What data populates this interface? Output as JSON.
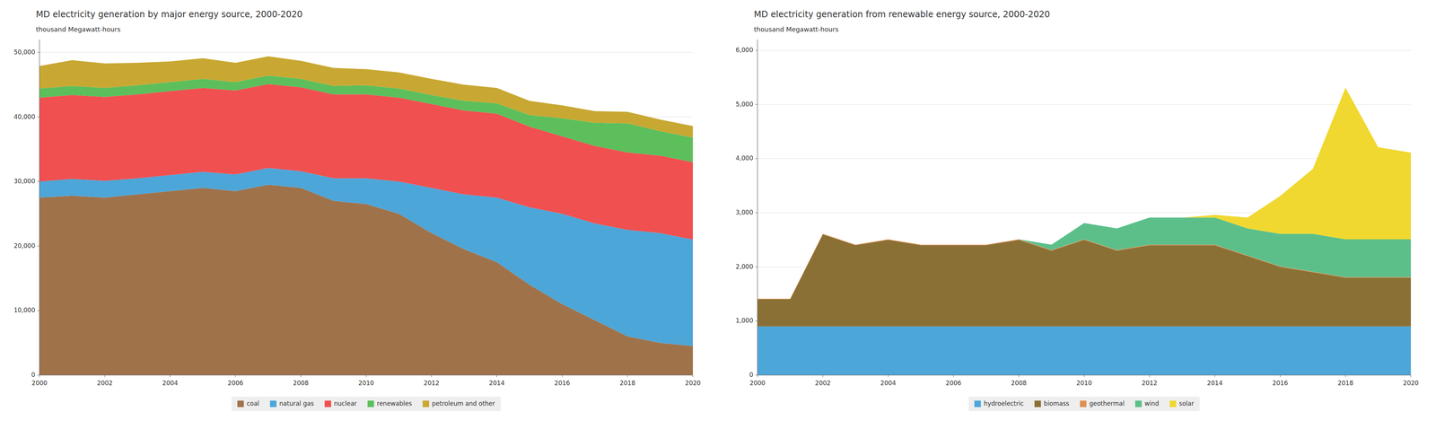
{
  "chart_data": [
    {
      "type": "area",
      "stacked": true,
      "title": "MD electricity generation by major energy source, 2000-2020",
      "ylabel": "thousand Megawatt-hours",
      "x": [
        2000,
        2001,
        2002,
        2003,
        2004,
        2005,
        2006,
        2007,
        2008,
        2009,
        2010,
        2011,
        2012,
        2013,
        2014,
        2015,
        2016,
        2017,
        2018,
        2019,
        2020
      ],
      "xlim": [
        2000,
        2020
      ],
      "xticks": [
        2000,
        2002,
        2004,
        2006,
        2008,
        2010,
        2012,
        2014,
        2016,
        2018,
        2020
      ],
      "ylim": [
        0,
        52000
      ],
      "yticks": [
        0,
        {
          "value": 10000,
          "label": "10,000"
        },
        {
          "value": 20000,
          "label": "20,000"
        },
        {
          "value": 30000,
          "label": "30,000"
        },
        {
          "value": 40000,
          "label": "40,000"
        },
        {
          "value": 50000,
          "label": "50,000"
        }
      ],
      "grid": true,
      "legend": "bottom",
      "series": [
        {
          "name": "coal",
          "color": "#a0724a",
          "values": [
            27500,
            27800,
            27500,
            28000,
            28500,
            29000,
            28500,
            29500,
            29000,
            27000,
            26500,
            25000,
            22000,
            19500,
            17500,
            14000,
            11000,
            8500,
            6000,
            5000,
            4500
          ]
        },
        {
          "name": "natural gas",
          "color": "#4da6d8",
          "values": [
            2500,
            2600,
            2600,
            2500,
            2500,
            2500,
            2600,
            2600,
            2600,
            3500,
            4000,
            5000,
            7000,
            8500,
            10000,
            12000,
            14000,
            15000,
            16500,
            17000,
            16500
          ]
        },
        {
          "name": "nuclear",
          "color": "#f05050",
          "values": [
            13000,
            13000,
            13000,
            13000,
            13000,
            13000,
            13000,
            13000,
            13000,
            13000,
            13000,
            13000,
            13000,
            13000,
            13000,
            12500,
            12000,
            12000,
            12000,
            12000,
            12000
          ]
        },
        {
          "name": "renewables",
          "color": "#5cbf5c",
          "values": [
            1400,
            1400,
            1400,
            1400,
            1400,
            1400,
            1300,
            1300,
            1300,
            1300,
            1400,
            1400,
            1400,
            1500,
            1600,
            1800,
            2800,
            3600,
            4500,
            3800,
            3800
          ]
        },
        {
          "name": "petroleum and other",
          "color": "#c8a832",
          "values": [
            3500,
            4000,
            3800,
            3500,
            3200,
            3200,
            3000,
            3000,
            2800,
            2800,
            2500,
            2500,
            2500,
            2500,
            2400,
            2200,
            2000,
            1800,
            1800,
            1800,
            1800
          ]
        }
      ]
    },
    {
      "type": "area",
      "stacked": true,
      "title": "MD electricity generation from renewable energy source, 2000-2020",
      "ylabel": "thousand Megawatt-hours",
      "x": [
        2000,
        2001,
        2002,
        2003,
        2004,
        2005,
        2006,
        2007,
        2008,
        2009,
        2010,
        2011,
        2012,
        2013,
        2014,
        2015,
        2016,
        2017,
        2018,
        2019,
        2020
      ],
      "xlim": [
        2000,
        2020
      ],
      "xticks": [
        2000,
        2002,
        2004,
        2006,
        2008,
        2010,
        2012,
        2014,
        2016,
        2018,
        2020
      ],
      "ylim": [
        0,
        6200
      ],
      "yticks": [
        0,
        {
          "value": 1000,
          "label": "1,000"
        },
        {
          "value": 2000,
          "label": "2,000"
        },
        {
          "value": 3000,
          "label": "3,000"
        },
        {
          "value": 4000,
          "label": "4,000"
        },
        {
          "value": 5000,
          "label": "5,000"
        },
        {
          "value": 6000,
          "label": "6,000"
        }
      ],
      "grid": true,
      "legend": "bottom",
      "series": [
        {
          "name": "hydroelectric",
          "color": "#4da6d8",
          "values": [
            900,
            900,
            900,
            900,
            900,
            900,
            900,
            900,
            900,
            900,
            900,
            900,
            900,
            900,
            900,
            900,
            900,
            900,
            900,
            900,
            900
          ]
        },
        {
          "name": "biomass",
          "color": "#8b7035",
          "values": [
            500,
            500,
            1700,
            1500,
            1600,
            1500,
            1500,
            1500,
            1600,
            1400,
            1600,
            1400,
            1500,
            1500,
            1500,
            1300,
            1100,
            1000,
            900,
            900,
            900
          ]
        },
        {
          "name": "geothermal",
          "color": "#e09050",
          "values": [
            10,
            10,
            10,
            10,
            10,
            10,
            10,
            10,
            10,
            10,
            10,
            10,
            10,
            10,
            10,
            10,
            10,
            10,
            10,
            10,
            10
          ]
        },
        {
          "name": "wind",
          "color": "#5cbf8a",
          "values": [
            0,
            0,
            0,
            0,
            0,
            0,
            0,
            0,
            0,
            100,
            300,
            400,
            500,
            500,
            500,
            500,
            600,
            700,
            700,
            700,
            700
          ]
        },
        {
          "name": "solar",
          "color": "#f0d830",
          "values": [
            0,
            0,
            0,
            0,
            0,
            0,
            0,
            0,
            0,
            0,
            0,
            0,
            0,
            0,
            50,
            200,
            700,
            1200,
            2800,
            1700,
            1600
          ]
        }
      ]
    }
  ]
}
